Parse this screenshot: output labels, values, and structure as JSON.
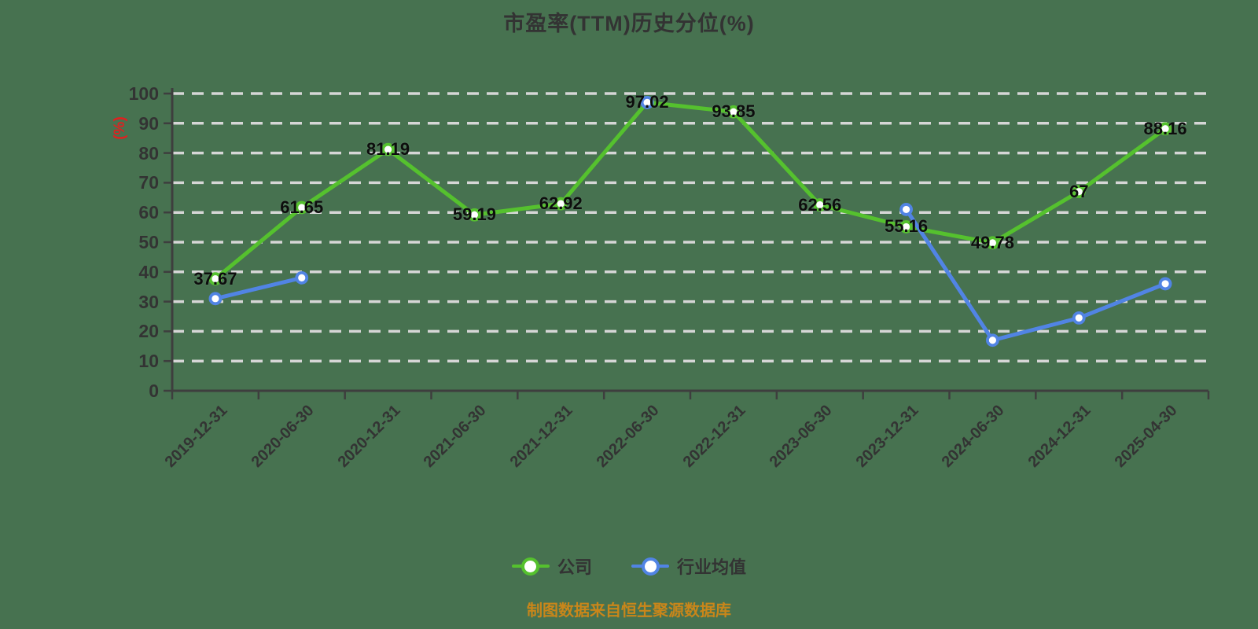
{
  "title": "市盈率(TTM)历史分位(%)",
  "y_axis_name": "(%)",
  "footer": "制图数据来自恒生聚源数据库",
  "colors": {
    "background": "#477250",
    "company": "#55c12e",
    "industry": "#5184e4",
    "grid": "#d6d6d6",
    "axis": "#3e3e3e",
    "tick_text": "#333333",
    "title_text": "#333333",
    "data_label": "#0d0d0d",
    "axis_name": "#e02020",
    "footer_text": "#c9861a",
    "marker_fill": "#ffffff"
  },
  "legend": [
    {
      "label": "公司",
      "color_key": "company"
    },
    {
      "label": "行业均值",
      "color_key": "industry"
    }
  ],
  "chart_data": {
    "type": "line",
    "categories": [
      "2019-12-31",
      "2020-06-30",
      "2020-12-31",
      "2021-06-30",
      "2021-12-31",
      "2022-06-30",
      "2022-12-31",
      "2023-06-30",
      "2023-12-31",
      "2024-06-30",
      "2024-12-31",
      "2025-04-30"
    ],
    "series": [
      {
        "name": "公司",
        "key": "company",
        "color_key": "company",
        "values": [
          37.67,
          61.65,
          81.19,
          59.19,
          62.92,
          97.02,
          93.85,
          62.56,
          55.16,
          49.78,
          67,
          88.16
        ],
        "labels": [
          "37.67",
          "61.65",
          "81.19",
          "59.19",
          "62.92",
          "97.02",
          "93.85",
          "62.56",
          "55.16",
          "49.78",
          "67",
          "88.16"
        ],
        "show_labels": true
      },
      {
        "name": "行业均值",
        "key": "industry",
        "color_key": "industry",
        "values": [
          31,
          38,
          null,
          null,
          null,
          97,
          null,
          null,
          61,
          17,
          24.5,
          36
        ],
        "labels": [],
        "show_labels": false
      }
    ],
    "ylim": [
      0,
      100
    ],
    "y_ticks": [
      0,
      10,
      20,
      30,
      40,
      50,
      60,
      70,
      80,
      90,
      100
    ],
    "grid": "dashed-horizontal",
    "legend_position": "bottom"
  }
}
